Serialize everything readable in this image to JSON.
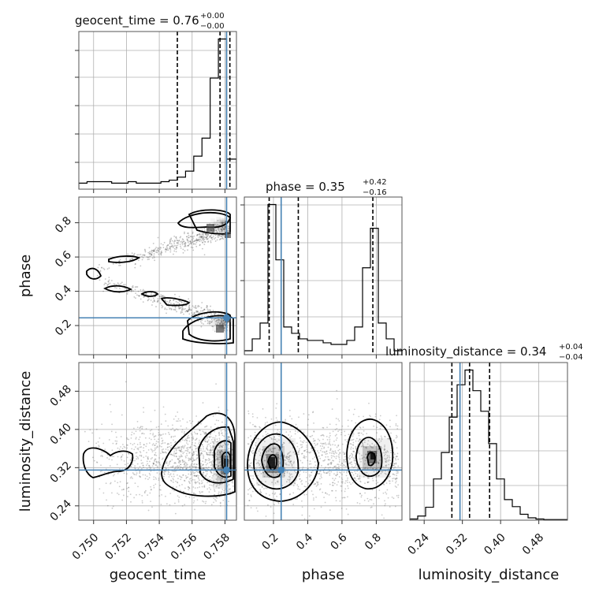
{
  "chart_data": {
    "type": "corner",
    "parameters": [
      "geocent_time",
      "phase",
      "luminosity_distance"
    ],
    "titles": [
      {
        "text": "geocent_time = 0.76",
        "upper": "+0.00",
        "lower": "−0.00"
      },
      {
        "text": "phase = 0.35",
        "upper": "+0.42",
        "lower": "−0.16"
      },
      {
        "text": "luminosity_distance = 0.34",
        "upper": "+0.04",
        "lower": "−0.04"
      }
    ],
    "axis_labels": {
      "x": [
        "geocent_time",
        "phase",
        "luminosity_distance"
      ],
      "y": [
        "phase",
        "luminosity_distance"
      ]
    },
    "ranges": {
      "geocent_time": [
        0.7491,
        0.7587
      ],
      "phase": [
        0.03,
        0.95
      ],
      "luminosity_distance": [
        0.21,
        0.54
      ]
    },
    "ticks": {
      "geocent_time": [
        0.75,
        0.752,
        0.754,
        0.756,
        0.758
      ],
      "geocent_time_labels": [
        "0.750",
        "0.752",
        "0.754",
        "0.756",
        "0.758"
      ],
      "phase_x": [
        0.2,
        0.4,
        0.6,
        0.8
      ],
      "phase_x_labels": [
        "0.2",
        "0.4",
        "0.6",
        "0.8"
      ],
      "phase_y": [
        0.2,
        0.4,
        0.6,
        0.8
      ],
      "phase_y_labels": [
        "0.2",
        "0.4",
        "0.6",
        "0.8"
      ],
      "luminosity_distance": [
        0.24,
        0.32,
        0.4,
        0.48
      ],
      "luminosity_distance_labels": [
        "0.24",
        "0.32",
        "0.40",
        "0.48"
      ]
    },
    "truths": {
      "geocent_time": 0.7581,
      "phase": 0.245,
      "luminosity_distance": 0.315
    },
    "quantiles": {
      "geocent_time": [
        0.7551,
        0.7577,
        0.7583
      ],
      "phase": [
        0.175,
        0.345,
        0.78
      ],
      "luminosity_distance": [
        0.298,
        0.335,
        0.377
      ]
    },
    "histograms": {
      "geocent_time": {
        "edges": [
          0.7491,
          0.7496,
          0.7501,
          0.7506,
          0.7511,
          0.7516,
          0.7521,
          0.7526,
          0.7531,
          0.7536,
          0.7541,
          0.7546,
          0.7551,
          0.7556,
          0.7561,
          0.7566,
          0.7571,
          0.7576,
          0.7581,
          0.7587
        ],
        "counts": [
          2,
          2.5,
          2.5,
          2.5,
          2,
          2,
          2.5,
          2,
          2,
          2,
          2.5,
          3,
          4,
          6,
          11,
          17,
          37,
          50,
          10
        ]
      },
      "phase": {
        "edges": [
          0.03,
          0.076,
          0.122,
          0.168,
          0.214,
          0.26,
          0.306,
          0.352,
          0.398,
          0.444,
          0.49,
          0.536,
          0.582,
          0.628,
          0.674,
          0.72,
          0.766,
          0.812,
          0.858,
          0.904,
          0.95
        ],
        "counts": [
          0.5,
          2,
          4,
          19,
          12,
          3.5,
          2.7,
          2,
          1.8,
          1.8,
          1.5,
          1.3,
          1.3,
          1.8,
          3.5,
          11,
          16,
          4,
          2,
          0.5
        ]
      },
      "luminosity_distance": {
        "edges": [
          0.21,
          0.2265,
          0.243,
          0.2595,
          0.276,
          0.2925,
          0.309,
          0.3255,
          0.342,
          0.3585,
          0.375,
          0.3915,
          0.408,
          0.4245,
          0.441,
          0.4575,
          0.474,
          0.4905,
          0.507,
          0.5235,
          0.54
        ],
        "counts": [
          0.2,
          0.7,
          2.2,
          7,
          11.5,
          17.5,
          23,
          25.5,
          22,
          18.5,
          13,
          7,
          3.5,
          2.3,
          1,
          0.4,
          0.2,
          0.1,
          0.1,
          0.1
        ]
      }
    },
    "scatter_color": "#555555",
    "truth_color": "#4682b4"
  }
}
